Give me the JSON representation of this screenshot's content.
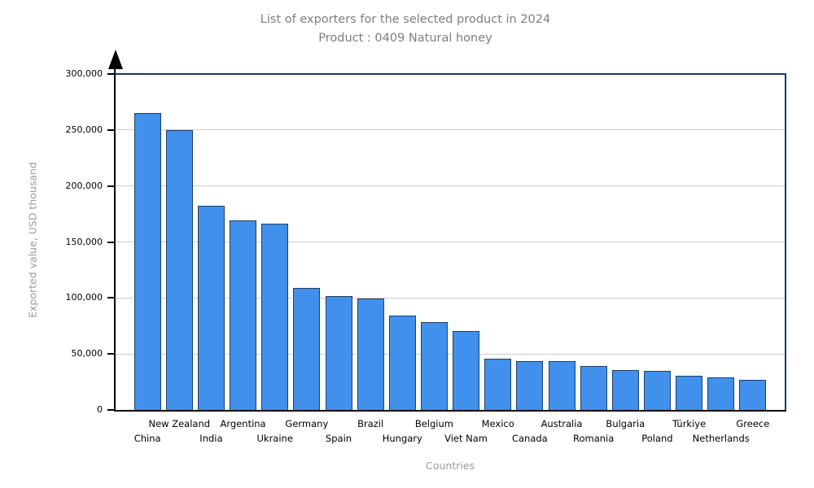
{
  "chart_data": {
    "type": "bar",
    "title": "List of exporters for the selected product in 2024",
    "subtitle": "Product : 0409 Natural honey",
    "xlabel": "Countries",
    "ylabel": "Exported value, USD thousand",
    "ylim": [
      0,
      300000
    ],
    "ytick_step": 50000,
    "ytick_labels": [
      "0",
      "50,000",
      "100,000",
      "150,000",
      "200,000",
      "250,000",
      "300,000"
    ],
    "grid": true,
    "legend": false,
    "categories": [
      "China",
      "New Zealand",
      "India",
      "Argentina",
      "Ukraine",
      "Germany",
      "Spain",
      "Brazil",
      "Hungary",
      "Belgium",
      "Viet Nam",
      "Mexico",
      "Canada",
      "Australia",
      "Romania",
      "Bulgaria",
      "Poland",
      "Türkiye",
      "Netherlands",
      "Greece"
    ],
    "values": [
      265500,
      250800,
      183000,
      170000,
      167000,
      109500,
      102500,
      100500,
      85000,
      79500,
      71000,
      46500,
      44300,
      44000,
      40000,
      36500,
      35500,
      31000,
      30000,
      27500
    ]
  },
  "colors": {
    "bar_fill": "#4190ec",
    "bar_border": "#1f3e69",
    "gridline": "#cccccc",
    "axis_black": "#000000",
    "box_navy": "#17395f",
    "title_gray": "#7d7d7d",
    "axis_title_gray": "#9a9a9a"
  }
}
